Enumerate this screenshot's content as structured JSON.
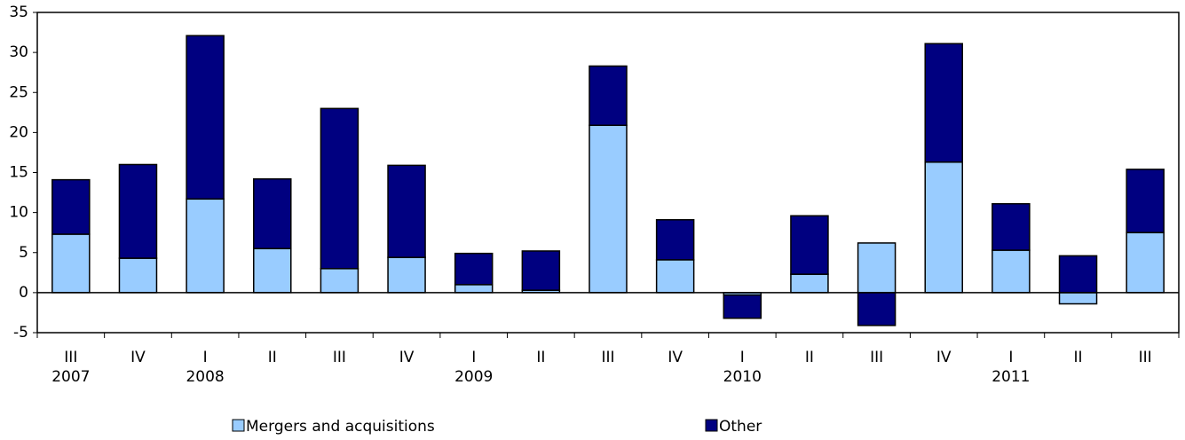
{
  "chart_data": {
    "type": "stacked_bar",
    "categories": [
      "III",
      "IV",
      "I",
      "II",
      "III",
      "IV",
      "I",
      "II",
      "III",
      "IV",
      "I",
      "II",
      "III",
      "IV",
      "I",
      "II",
      "III"
    ],
    "category_groups": [
      "2007",
      null,
      "2008",
      null,
      null,
      null,
      "2009",
      null,
      null,
      null,
      "2010",
      null,
      null,
      null,
      "2011",
      null,
      null
    ],
    "series": [
      {
        "name": "Mergers and acquisitions",
        "color": "#99ccff",
        "values": [
          7.3,
          4.3,
          11.7,
          5.5,
          3.0,
          4.4,
          1.0,
          0.3,
          20.9,
          4.1,
          -0.3,
          2.3,
          6.2,
          16.3,
          5.3,
          -1.4,
          7.5
        ]
      },
      {
        "name": "Other",
        "color": "#000080",
        "values": [
          6.8,
          11.7,
          20.4,
          8.7,
          20.0,
          11.5,
          3.9,
          4.9,
          7.4,
          5.0,
          -2.9,
          7.3,
          -4.1,
          14.8,
          5.8,
          4.6,
          7.9
        ]
      }
    ],
    "ylim": [
      -5,
      35
    ],
    "yticks": [
      -5,
      0,
      5,
      10,
      15,
      20,
      25,
      30,
      35
    ],
    "grid": false,
    "legend": "bottom"
  }
}
